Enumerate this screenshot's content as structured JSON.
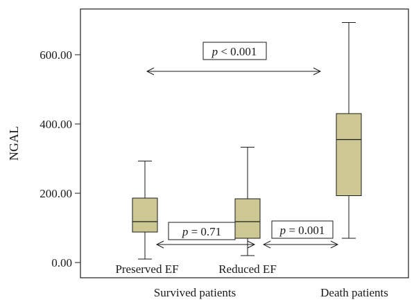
{
  "chart_data": {
    "type": "box",
    "ylabel": "NGAL",
    "xlabel": "",
    "ylim": [
      0,
      720
    ],
    "yticks": [
      {
        "value": 0,
        "label": "0.00"
      },
      {
        "value": 200,
        "label": "200.00"
      },
      {
        "value": 400,
        "label": "400.00"
      },
      {
        "value": 600,
        "label": "600.00"
      }
    ],
    "boxes": [
      {
        "label": "Preserved EF",
        "min": 10,
        "q1": 88,
        "median": 118,
        "q3": 186,
        "max": 293
      },
      {
        "label": "Reduced EF",
        "min": 20,
        "q1": 70,
        "median": 118,
        "q3": 184,
        "max": 333
      },
      {
        "label": "",
        "min": 70,
        "q1": 193,
        "median": 355,
        "q3": 430,
        "max": 693
      }
    ],
    "groups": [
      {
        "label": "Survived patients"
      },
      {
        "label": "Death patients"
      }
    ],
    "annotations": [
      {
        "p": "p",
        "text": " < 0.001"
      },
      {
        "p": "p",
        "text": " = 0.71"
      },
      {
        "p": "p",
        "text": " = 0.001"
      }
    ],
    "box_color": "#cdc893",
    "grid": false
  }
}
